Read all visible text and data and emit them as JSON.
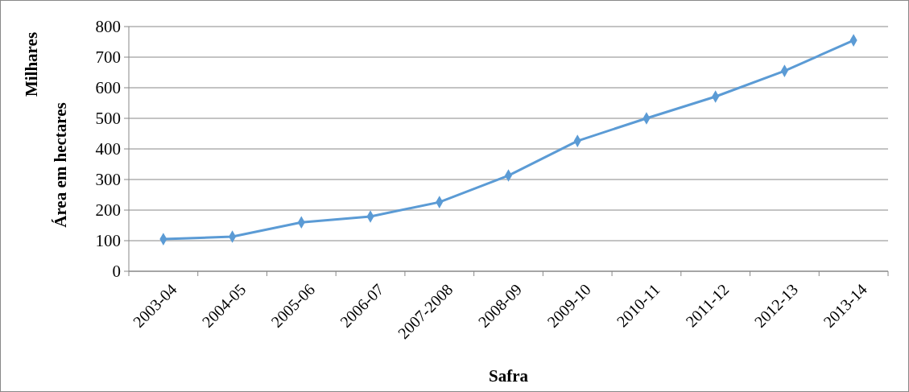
{
  "chart_data": {
    "type": "line",
    "xlabel": "Safra",
    "ylabel": "Área em hectares",
    "annotations": [
      "Milhares"
    ],
    "categories": [
      "2003-04",
      "2004-05",
      "2005-06",
      "2006-07",
      "2007-2008",
      "2008-09",
      "2009-10",
      "2010-11",
      "2011-12",
      "2012-13",
      "2013-14"
    ],
    "series": [
      {
        "color": "#5b9bd5",
        "values": [
          105,
          113,
          160,
          179,
          226,
          313,
          426,
          500,
          571,
          655,
          755
        ]
      }
    ],
    "ylim": [
      0,
      800
    ],
    "yticks": [
      0,
      100,
      200,
      300,
      400,
      500,
      600,
      700,
      800
    ],
    "grid": "y",
    "marker": "diamond",
    "line_style": "solid"
  }
}
